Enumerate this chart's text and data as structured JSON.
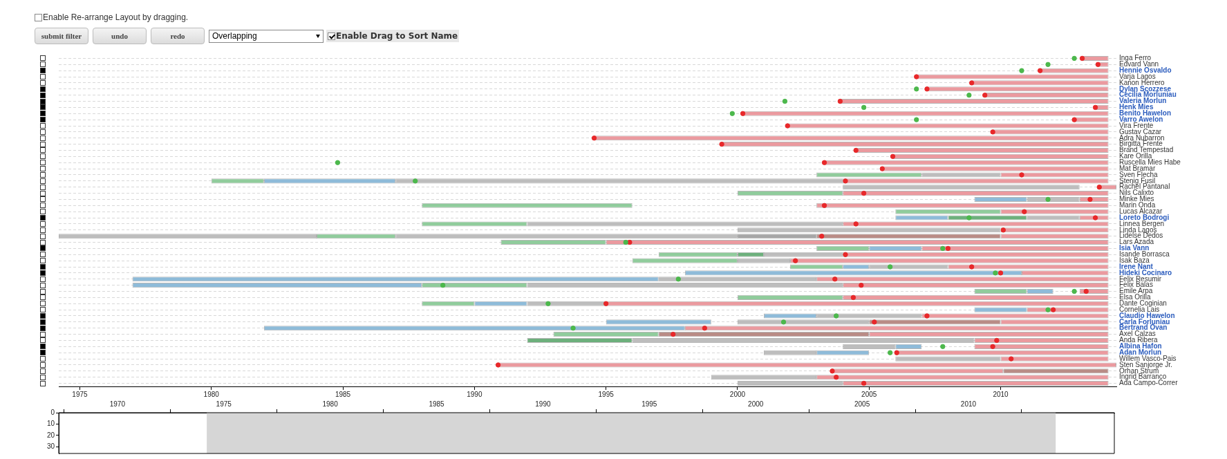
{
  "chart_data": [
    {
      "type": "other",
      "annotations": [
        "Enable Re-arrange Layout by dragging.",
        "submit filter",
        "undo",
        "redo",
        "Overlapping",
        "Enable Drag to Sort Name"
      ]
    },
    {
      "type": "bar",
      "orientation": "horizontal",
      "grid": "y",
      "marker": "circle",
      "categories": [
        "Inga Ferro",
        "Edvard Vann",
        "Hennie Osvaldo",
        "Varja Lagos",
        "Kanon Herrero",
        "Dylan Scozzese",
        "Cecilia Morluniau",
        "Valeria Morlun",
        "Henk Mies",
        "Benito Hawelon",
        "Varro Awelon",
        "Vira Frente",
        "Gustav Cazar",
        "Adra Nubarron",
        "Birgitta Frente",
        "Brand Tempestad",
        "Kare Orilla",
        "Ruscella Mies Habe",
        "Mat Bramar",
        "Sven Flecha",
        "Stenig Fusil",
        "Rachel Pantanal",
        "Nils Calixto",
        "Minke Mies",
        "Marin Onda",
        "Lucas Alcazar",
        "Loreto Bodrogi",
        "Linnea Bergen",
        "Linda Lagos",
        "Lidelse Dedos",
        "Lars Azada",
        "Isia Vann",
        "Isande Borrasca",
        "Isak Baza",
        "Irene Nant",
        "Hideki Cocinaro",
        "Felix Resumir",
        "Felix Balas",
        "Emile Arpa",
        "Elsa Orilla",
        "Dante Coginian",
        "Cornelia Lais",
        "Claudio Hawelon",
        "Carla Forluniau",
        "Bertrand Ovan",
        "Axel Calzas",
        "Anda Ribera",
        "Albina Hafon",
        "Adan Morlun",
        "Willem Vasco-Pais",
        "Sten Sanjorge Jr.",
        "Orhan Strum",
        "Ingrid Barranco",
        "Ada Campo-Correr"
      ],
      "series": [
        {
          "color": "#eb9a9f",
          "base": [
            2013.1,
            2013.7,
            2011.5,
            2006.8,
            2008.9,
            2007.2,
            2009.4,
            2003.9,
            2013.6,
            2000.2,
            2012.8,
            2001.9,
            2009.7,
            1994.55,
            1999.4,
            2004.5,
            2005.9,
            2003.3,
            2005.5,
            2010,
            2004,
            2013.75,
            2004,
            2013,
            2003,
            2010,
            2013,
            2004,
            2010,
            2010,
            1995,
            2007,
            2004,
            2002,
            2008,
            2010.8,
            2003,
            2004,
            2013,
            2004,
            1995,
            2011,
            2007,
            2010,
            1998,
            2005,
            2009,
            2009,
            2006,
            2010,
            1990.9,
            2003.6,
            2003,
            2004
          ],
          "values": [
            1,
            0.4,
            2.6,
            7.3,
            5.2,
            6.9,
            4.7,
            10.2,
            0.5,
            13.9,
            1.3,
            12.2,
            4.4,
            19.55,
            14.7,
            9.6,
            8.2,
            10.8,
            8.6,
            4.1,
            10.1,
            0.65,
            10.1,
            1.1,
            11.1,
            4.1,
            1.1,
            10.1,
            4.1,
            4.1,
            19.1,
            7.1,
            10.1,
            12.1,
            6.1,
            3.3,
            11.1,
            10.1,
            1.1,
            10.1,
            19.1,
            3.1,
            7.1,
            4.1,
            16.1,
            9.1,
            5.1,
            5.1,
            8.1,
            4.1,
            23.5,
            6.5,
            11.1,
            10.1
          ]
        },
        {
          "color": "#90cc9c",
          "base": [
            null,
            null,
            null,
            null,
            null,
            null,
            null,
            null,
            null,
            null,
            null,
            null,
            null,
            null,
            null,
            null,
            null,
            null,
            null,
            2003,
            1980,
            null,
            2000,
            null,
            1988,
            2006,
            null,
            1988,
            null,
            1984,
            1991,
            2003,
            1997,
            1996,
            2002,
            null,
            null,
            1988,
            2009,
            2000,
            1988,
            null,
            null,
            null,
            null,
            1993,
            null,
            null,
            null,
            null,
            null,
            null,
            null,
            null
          ],
          "values": [
            null,
            null,
            null,
            null,
            null,
            null,
            null,
            null,
            null,
            null,
            null,
            null,
            null,
            null,
            null,
            null,
            null,
            null,
            null,
            4,
            2,
            null,
            4,
            null,
            8,
            4,
            null,
            4,
            null,
            3,
            4,
            2,
            3,
            4,
            2,
            null,
            null,
            4,
            2,
            4,
            2,
            null,
            null,
            null,
            null,
            4,
            null,
            null,
            null,
            null,
            null,
            null,
            null,
            null
          ]
        },
        {
          "color": "#6db07c",
          "base": [
            null,
            null,
            null,
            null,
            null,
            null,
            null,
            null,
            null,
            null,
            null,
            null,
            null,
            null,
            null,
            null,
            null,
            null,
            null,
            null,
            null,
            null,
            null,
            null,
            null,
            null,
            2008,
            null,
            null,
            null,
            null,
            null,
            2000,
            null,
            null,
            null,
            null,
            null,
            null,
            null,
            null,
            null,
            null,
            null,
            null,
            null,
            1992,
            null,
            null,
            null,
            null,
            null,
            null,
            null
          ],
          "values": [
            null,
            null,
            null,
            null,
            null,
            null,
            null,
            null,
            null,
            null,
            null,
            null,
            null,
            null,
            null,
            null,
            null,
            null,
            null,
            null,
            null,
            null,
            null,
            null,
            null,
            null,
            3,
            null,
            null,
            null,
            null,
            null,
            1,
            null,
            null,
            null,
            null,
            null,
            null,
            null,
            null,
            null,
            null,
            null,
            null,
            null,
            4,
            null,
            null,
            null,
            null,
            null,
            null,
            null
          ]
        },
        {
          "color": "#8ebbd9",
          "base": [
            null,
            null,
            null,
            null,
            null,
            null,
            null,
            null,
            null,
            null,
            null,
            null,
            null,
            null,
            null,
            null,
            null,
            null,
            null,
            null,
            1982,
            null,
            null,
            2009,
            null,
            null,
            2006,
            null,
            null,
            null,
            null,
            2005,
            null,
            null,
            2004,
            1998,
            1977,
            1977,
            2011,
            null,
            1990,
            2009,
            2001,
            1995,
            1982,
            null,
            null,
            2006,
            2003,
            null,
            null,
            null,
            null,
            null
          ],
          "values": [
            null,
            null,
            null,
            null,
            null,
            null,
            null,
            null,
            null,
            null,
            null,
            null,
            null,
            null,
            null,
            null,
            null,
            null,
            null,
            null,
            5,
            null,
            null,
            2,
            null,
            null,
            2,
            null,
            null,
            null,
            null,
            2,
            null,
            null,
            1,
            12.8,
            20,
            11,
            1,
            null,
            2,
            2,
            2,
            4,
            16,
            null,
            null,
            1,
            2,
            null,
            null,
            null,
            null,
            null
          ]
        },
        {
          "color": "#bdbdbd",
          "base": [
            null,
            null,
            null,
            null,
            null,
            null,
            null,
            null,
            null,
            null,
            null,
            null,
            null,
            null,
            null,
            null,
            null,
            null,
            null,
            2007,
            1987,
            2004,
            null,
            2011,
            null,
            null,
            2011,
            1992,
            2000,
            1974.2,
            null,
            null,
            2001,
            2000,
            2005,
            null,
            1997,
            1992,
            null,
            null,
            1992,
            null,
            2003,
            2000,
            null,
            null,
            1996,
            2004,
            2001,
            2006,
            null,
            null,
            1999,
            2000
          ],
          "values": [
            null,
            null,
            null,
            null,
            null,
            null,
            null,
            null,
            null,
            null,
            null,
            null,
            null,
            null,
            null,
            null,
            null,
            null,
            null,
            3,
            17,
            9,
            null,
            2,
            null,
            null,
            2,
            12,
            10,
            9.8,
            null,
            null,
            3,
            2,
            3,
            null,
            6,
            12,
            null,
            null,
            3,
            null,
            4,
            5,
            null,
            null,
            13,
            2,
            2,
            4,
            null,
            null,
            4,
            4
          ]
        },
        {
          "color": "#bdbdbd",
          "base": [
            null,
            null,
            null,
            null,
            null,
            null,
            null,
            null,
            null,
            null,
            null,
            null,
            null,
            null,
            null,
            null,
            null,
            null,
            null,
            null,
            null,
            null,
            null,
            null,
            null,
            null,
            null,
            null,
            null,
            1987,
            null,
            null,
            null,
            null,
            null,
            null,
            null,
            null,
            null,
            null,
            null,
            null,
            null,
            null,
            null,
            null,
            null,
            null,
            null,
            null,
            null,
            null,
            null,
            null
          ],
          "values": [
            null,
            null,
            null,
            null,
            null,
            null,
            null,
            null,
            null,
            null,
            null,
            null,
            null,
            null,
            null,
            null,
            null,
            null,
            null,
            null,
            null,
            null,
            null,
            null,
            null,
            null,
            null,
            null,
            null,
            13,
            null,
            null,
            null,
            null,
            null,
            null,
            null,
            null,
            null,
            null,
            null,
            null,
            null,
            null,
            null,
            null,
            null,
            null,
            null,
            null,
            null,
            null,
            null,
            null
          ]
        },
        {
          "color": "#a6a6a6",
          "base": [
            null,
            null,
            null,
            null,
            null,
            null,
            null,
            null,
            null,
            null,
            null,
            null,
            null,
            null,
            null,
            null,
            null,
            null,
            null,
            null,
            null,
            null,
            null,
            null,
            null,
            null,
            null,
            null,
            null,
            2000,
            null,
            null,
            null,
            null,
            null,
            null,
            null,
            null,
            null,
            null,
            null,
            null,
            null,
            null,
            null,
            null,
            null,
            null,
            null,
            null,
            null,
            null,
            null,
            null
          ],
          "values": [
            null,
            null,
            null,
            null,
            null,
            null,
            null,
            null,
            null,
            null,
            null,
            null,
            null,
            null,
            null,
            null,
            null,
            null,
            null,
            null,
            null,
            null,
            null,
            null,
            null,
            null,
            null,
            null,
            null,
            3,
            null,
            null,
            null,
            null,
            null,
            null,
            null,
            null,
            null,
            null,
            null,
            null,
            null,
            null,
            null,
            null,
            null,
            null,
            null,
            null,
            null,
            null,
            null,
            null
          ]
        },
        {
          "color": "#b98c86",
          "base": [
            null,
            null,
            null,
            null,
            null,
            null,
            null,
            null,
            null,
            null,
            null,
            null,
            null,
            null,
            null,
            null,
            null,
            null,
            null,
            null,
            null,
            null,
            null,
            null,
            null,
            null,
            null,
            null,
            null,
            2003,
            null,
            null,
            null,
            null,
            null,
            null,
            null,
            null,
            null,
            null,
            null,
            null,
            null,
            2005,
            null,
            1997,
            null,
            null,
            null,
            null,
            null,
            2010.1,
            null,
            null
          ],
          "values": [
            null,
            null,
            null,
            null,
            null,
            null,
            null,
            null,
            null,
            null,
            null,
            null,
            null,
            null,
            null,
            null,
            null,
            null,
            null,
            null,
            null,
            null,
            null,
            null,
            null,
            null,
            null,
            null,
            null,
            7,
            null,
            null,
            null,
            null,
            null,
            null,
            null,
            null,
            null,
            null,
            null,
            null,
            null,
            5,
            null,
            8,
            null,
            null,
            null,
            null,
            null,
            4,
            null,
            null
          ]
        },
        {
          "type": "scatter",
          "color": "#4cb84c",
          "x": [
            "Inga Ferro",
            "Edvard Vann",
            "Hennie Osvaldo",
            "Dylan Scozzese",
            "Cecilia Morluniau",
            "Valeria Morlun",
            "Henk Mies",
            "Benito Hawelon",
            "Varro Awelon",
            "Ruscella Mies Habe",
            "Stenig Fusil",
            "Minke Mies",
            "Loreto Bodrogi",
            "Lars Azada",
            "Isia Vann",
            "Irene Nant",
            "Hideki Cocinaro",
            "Felix Resumir",
            "Felix Balas",
            "Emile Arpa",
            "Dante Coginian",
            "Cornelia Lais",
            "Claudio Hawelon",
            "Carla Forluniau",
            "Bertrand Ovan",
            "Albina Hafon",
            "Adan Morlun"
          ],
          "values": [
            2012.8,
            2011.8,
            2010.8,
            2006.8,
            2008.8,
            2001.8,
            2004.8,
            1999.8,
            2006.8,
            1984.8,
            1987.75,
            2011.8,
            2008.8,
            1995.75,
            2007.8,
            2005.8,
            2009.8,
            1997.75,
            1988.8,
            2012.8,
            1992.8,
            2011.8,
            2003.75,
            2001.75,
            1993.75,
            2007.8,
            2005.8
          ]
        },
        {
          "type": "scatter",
          "color": "#e8282a",
          "x": [
            "Inga Ferro",
            "Edvard Vann",
            "Hennie Osvaldo",
            "Varja Lagos",
            "Kanon Herrero",
            "Dylan Scozzese",
            "Cecilia Morluniau",
            "Valeria Morlun",
            "Henk Mies",
            "Benito Hawelon",
            "Varro Awelon",
            "Vira Frente",
            "Gustav Cazar",
            "Adra Nubarron",
            "Birgitta Frente",
            "Brand Tempestad",
            "Kare Orilla",
            "Ruscella Mies Habe",
            "Mat Bramar",
            "Sven Flecha",
            "Stenig Fusil",
            "Rachel Pantanal",
            "Nils Calixto",
            "Minke Mies",
            "Marin Onda",
            "Lucas Alcazar",
            "Loreto Bodrogi",
            "Linnea Bergen",
            "Linda Lagos",
            "Lidelse Dedos",
            "Lars Azada",
            "Isia Vann",
            "Isande Borrasca",
            "Isak Baza",
            "Irene Nant",
            "Hideki Cocinaro",
            "Felix Resumir",
            "Felix Balas",
            "Emile Arpa",
            "Elsa Orilla",
            "Dante Coginian",
            "Cornelia Lais",
            "Claudio Hawelon",
            "Carla Forluniau",
            "Bertrand Ovan",
            "Axel Calzas",
            "Anda Ribera",
            "Albina Hafon",
            "Adan Morlun",
            "Willem Vasco-Pais",
            "Sten Sanjorge Jr.",
            "Orhan Strum",
            "Ingrid Barranco",
            "Ada Campo-Correr"
          ],
          "values": [
            2013.1,
            2013.7,
            2011.5,
            2006.8,
            2008.9,
            2007.2,
            2009.4,
            2003.9,
            2013.6,
            2000.2,
            2012.8,
            2001.9,
            2009.7,
            1994.55,
            1999.4,
            2004.5,
            2005.9,
            2003.3,
            2005.5,
            2010.8,
            2004.1,
            2013.75,
            2004.8,
            2013.4,
            2003.3,
            2010.9,
            2013.6,
            2004.5,
            2010.1,
            2003.2,
            1995.9,
            2008,
            2004.1,
            2002.2,
            2008.9,
            2010,
            2003.7,
            2004.7,
            2013.25,
            2004.4,
            1995,
            2012,
            2007.2,
            2005.2,
            1998.75,
            1997.55,
            2009.85,
            2009.7,
            2006.05,
            2010.4,
            1990.9,
            2003.6,
            2003.75,
            2004.8
          ]
        }
      ],
      "xlim": [
        1974.2,
        2014.4
      ],
      "xticks": [
        1975,
        1980,
        1985,
        1990,
        1995,
        2000,
        2005,
        2010
      ]
    },
    {
      "type": "line",
      "xlim": [
        1970,
        2014.1
      ],
      "xticks": [
        1970,
        1975,
        1980,
        1985,
        1990,
        1995,
        2000,
        2005,
        2010
      ],
      "ylim": [
        36,
        0
      ],
      "yticks": [
        0,
        10,
        20,
        30
      ],
      "bands": [
        {
          "axis": "x",
          "from": 1974.2,
          "to": 2014.1,
          "color": "#d6d6d6"
        }
      ]
    }
  ]
}
